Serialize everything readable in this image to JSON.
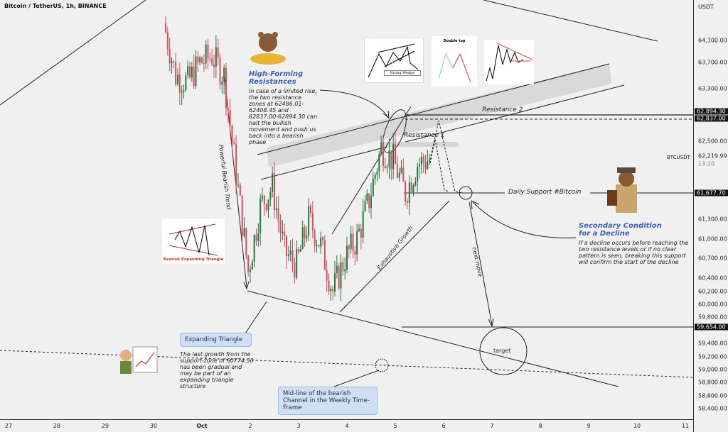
{
  "header": {
    "title": "Bitcoin / TetherUS, 1h, BINANCE"
  },
  "price_axis": {
    "currency": "USDT",
    "ticks": [
      "64,100.00",
      "63,700.00",
      "63,300.00",
      "62,500.00",
      "61,300.00",
      "61,000.00",
      "60,700.00",
      "60,400.00",
      "60,200.00",
      "60,000.00",
      "59,800.00",
      "59,400.00",
      "59,200.00",
      "59,000.00",
      "58,800.00",
      "58,600.00",
      "58,400.00"
    ],
    "badges": [
      "62,894.30",
      "62,837.00",
      "61,677.70",
      "59,654.00"
    ],
    "last_price": {
      "symbol": "BTCUSDT",
      "value": "62,219.99",
      "countdown": "13:20"
    }
  },
  "time_axis": {
    "ticks": [
      "27",
      "28",
      "29",
      "30",
      "Oct",
      "2",
      "3",
      "4",
      "5",
      "6",
      "7",
      "8",
      "9",
      "10",
      "11"
    ]
  },
  "annotations": {
    "high_forming_title": "High-Forming Resistances",
    "high_forming_text": "In case of a limited rise, the two resistance zones at 62486.01-62408.45 and 62837.00-62894.30 can halt the bullish movement and push us back into a bearish phase",
    "secondary_title": "Secondary Condition for a Decline",
    "secondary_text": "If a decline occurs before reaching the two resistance levels or if no clear pattern is seen, breaking this support will confirm the start of the decline",
    "expanding_triangle": "Expanding Triangle",
    "last_growth_text": "The last growth from the support-zone of 60774.50 has been gradual and may be part of an expanding triangle structure",
    "midline_text": "Mid-line of the bearish Channel in the Weekly Time-Frame",
    "resistance_1": "Resistance 1",
    "resistance_2": "Resistance 2",
    "daily_support": "Daily Support #Bitcoin",
    "powerful_trend": "Powerful Bearish Trend",
    "exhaustive_growth": "Exhaustive Growth",
    "next_move": "next move",
    "target": "target",
    "pattern_rising_wedge": "Rising Wedge",
    "pattern_double_top": "Double top",
    "pattern_bearish_triangle": "Bearish Expanding Triangle"
  },
  "colors": {
    "up": "#1f7a3a",
    "down": "#e0485c",
    "accent": "#3b62b8",
    "callout": "#cfe0f5"
  },
  "chart_data": {
    "type": "candlestick",
    "title": "Bitcoin / TetherUS, 1h, BINANCE",
    "interval": "1h",
    "key_levels": [
      62894.3,
      62837.0,
      61677.7,
      59654.0
    ],
    "ylim": [
      58300,
      64700
    ],
    "x_ticks": [
      "27",
      "28",
      "29",
      "30",
      "Oct",
      "2",
      "3",
      "4",
      "5",
      "6",
      "7",
      "8",
      "9",
      "10",
      "11"
    ],
    "close_6h": {
      "t": [
        "Sep 30 06:00",
        "Sep 30 12:00",
        "Sep 30 18:00",
        "Oct 1 00:00",
        "Oct 1 06:00",
        "Oct 1 12:00",
        "Oct 1 18:00",
        "Oct 2 00:00",
        "Oct 2 06:00",
        "Oct 2 12:00",
        "Oct 2 18:00",
        "Oct 3 00:00",
        "Oct 3 06:00",
        "Oct 3 12:00",
        "Oct 3 18:00",
        "Oct 4 00:00",
        "Oct 4 06:00",
        "Oct 4 12:00",
        "Oct 4 18:00",
        "Oct 5 00:00",
        "Oct 5 06:00",
        "Oct 5 12:00",
        "Oct 5 18:00"
      ],
      "v": [
        64300,
        63500,
        63400,
        63700,
        63800,
        63500,
        62000,
        60500,
        61500,
        61800,
        60800,
        60600,
        61300,
        60900,
        60200,
        60700,
        61000,
        61600,
        62400,
        62200,
        61700,
        62150,
        62220
      ]
    }
  }
}
